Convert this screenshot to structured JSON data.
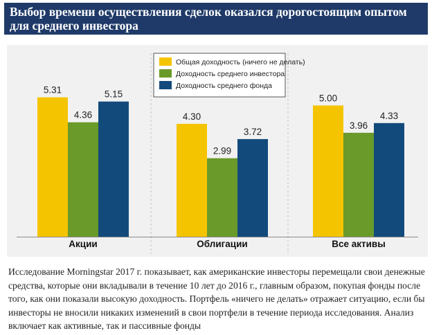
{
  "header": {
    "title": "Выбор времени осуществления сделок оказался дорогостоящим опытом для среднего инвестора"
  },
  "chart_data": {
    "type": "bar",
    "categories": [
      "Акции",
      "Облигации",
      "Все активы"
    ],
    "series": [
      {
        "name": "Общая доходность (ничего не делать)",
        "color": "#f5c400",
        "values": [
          5.31,
          4.3,
          5.0
        ],
        "labels": [
          "5.31",
          "4.30",
          "5.00"
        ]
      },
      {
        "name": "Доходность среднего инвестора",
        "color": "#6a9a2a",
        "values": [
          4.36,
          2.99,
          3.96
        ],
        "labels": [
          "4.36",
          "2.99",
          "3.96"
        ]
      },
      {
        "name": "Доходность среднего фонда",
        "color": "#134a7c",
        "values": [
          5.15,
          3.72,
          4.33
        ],
        "labels": [
          "5.15",
          "3.72",
          "4.33"
        ]
      }
    ],
    "ylim": [
      0,
      6.25
    ],
    "legend": "top-center",
    "grid": false
  },
  "caption": {
    "text": "Исследование Morningstar 2017 г. показывает, как американские инвесторы перемещали свои денежные средства, которые они вкладывали в течение 10 лет до 2016 г., главным образом, покупая фонды после того, как они показали высокую доходность. Портфель «ничего не делать» отражает ситуацию, если бы инвесторы не вносили никаких изменений в свои портфели в течение периода исследования. Анализ включает как активные, так и пассивные фонды"
  }
}
